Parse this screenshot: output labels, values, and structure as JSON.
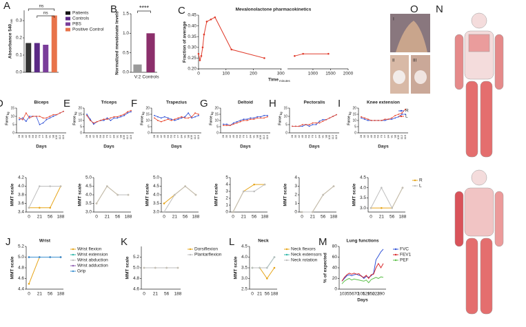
{
  "chart_data": [
    {
      "type": "bar",
      "panel": "A",
      "ylabel": "Absorbance 540",
      "ylabel_sub": "nm",
      "categories": [
        "Patients",
        "Controls",
        "PBS",
        "Positive Control"
      ],
      "values": [
        0.17,
        0.17,
        0.16,
        0.33
      ],
      "colors": [
        "#111111",
        "#5b2a86",
        "#7a3d9a",
        "#e8734a"
      ],
      "ylim": [
        0,
        0.36
      ],
      "yticks": [
        {
          "value": 0,
          "label": "0.0"
        },
        0.1,
        0.2,
        0.3
      ],
      "legend": "right",
      "annotations": [
        "ns",
        "ns"
      ]
    },
    {
      "type": "bar",
      "panel": "B",
      "ylabel": "Normalized mevalonate levels",
      "categories": [
        "V:2",
        "Controls"
      ],
      "values": [
        0.2,
        1.0
      ],
      "colors": [
        "#9a9a9a",
        "#8b2f6b"
      ],
      "ylim": [
        0,
        1.5
      ],
      "yticks": [
        {
          "value": 0,
          "label": "0.0"
        },
        0.5,
        {
          "value": 1,
          "label": "1.0"
        },
        1.5
      ],
      "annotations": [
        "****"
      ]
    },
    {
      "type": "line",
      "panel": "C",
      "title": "Mevalonolactone pharmacokinetics",
      "xlabel": "Time",
      "xlabel_sub": "minutes",
      "ylabel": "Fraction of average",
      "x": [
        0,
        5,
        10,
        15,
        20,
        30,
        45,
        60,
        120,
        240,
        480,
        720,
        1440
      ],
      "series": [
        {
          "name": "Mevalonolactone",
          "color": "#e03a2a",
          "values": [
            0.27,
            0.24,
            0.26,
            0.3,
            0.36,
            0.42,
            0.43,
            0.44,
            0.29,
            0.25,
            0.26,
            0.27,
            0.27
          ]
        }
      ],
      "xlim": [
        0,
        2000
      ],
      "xbreak": 300,
      "xticks": [
        0,
        100,
        200,
        300,
        1000,
        1500,
        2000
      ],
      "ylim": [
        0.2,
        0.45
      ],
      "yticks": [
        {
          "value": 0.2,
          "label": "0.20"
        },
        0.25,
        {
          "value": 0.3,
          "label": "0.30"
        },
        0.35,
        {
          "value": 0.4,
          "label": "0.40"
        },
        0.45
      ],
      "legend": "none"
    },
    {
      "type": "line",
      "panel": "D",
      "title": "Biceps",
      "xlabel": "Days",
      "ylabel": "Force",
      "ylabel_sub": "kg",
      "categories": [
        "28",
        "35",
        "42",
        "49",
        "56",
        "63",
        "70",
        "77",
        "84",
        "91",
        "98",
        "105",
        "112",
        "119"
      ],
      "series": [
        {
          "name": "R",
          "color": "#2d4fd6",
          "values": [
            8,
            9,
            7,
            10,
            10,
            10,
            5,
            6,
            8,
            9,
            10,
            11,
            12,
            13
          ]
        },
        {
          "name": "L",
          "color": "#e8442a",
          "values": [
            9,
            8,
            12,
            9,
            10,
            10,
            10,
            9,
            9,
            10,
            11,
            11,
            12,
            13
          ]
        }
      ],
      "ylim": [
        0,
        15
      ],
      "yticks": [
        0,
        5,
        10,
        15
      ],
      "legend": "none"
    },
    {
      "type": "line",
      "panel": "E",
      "title": "Triceps",
      "xlabel": "Days",
      "ylabel": "Force",
      "ylabel_sub": "kg",
      "categories": [
        "28",
        "35",
        "42",
        "49",
        "56",
        "63",
        "70",
        "77",
        "84",
        "91",
        "98",
        "105",
        "112",
        "119"
      ],
      "series": [
        {
          "name": "R",
          "color": "#2d4fd6",
          "values": [
            15,
            11,
            7,
            9,
            10,
            10,
            12,
            10,
            12,
            12,
            13,
            14,
            16,
            17
          ]
        },
        {
          "name": "L",
          "color": "#e8442a",
          "values": [
            14,
            10,
            8,
            9,
            10,
            11,
            11,
            12,
            13,
            13,
            14,
            15,
            17,
            18
          ]
        }
      ],
      "ylim": [
        0,
        20
      ],
      "yticks": [
        0,
        5,
        10,
        15,
        20
      ],
      "legend": "none"
    },
    {
      "type": "line",
      "panel": "F",
      "title": "Trapezius",
      "xlabel": "Days",
      "ylabel": "Force",
      "ylabel_sub": "kg",
      "categories": [
        "28",
        "35",
        "42",
        "49",
        "56",
        "63",
        "70",
        "77",
        "84",
        "91",
        "98",
        "105",
        "112",
        "119"
      ],
      "series": [
        {
          "name": "R",
          "color": "#2d4fd6",
          "values": [
            14,
            13,
            12,
            13,
            12,
            11,
            10,
            11,
            12,
            13,
            16,
            12,
            13,
            14
          ]
        },
        {
          "name": "L",
          "color": "#e8442a",
          "values": [
            12,
            10,
            9,
            10,
            11,
            10,
            11,
            12,
            13,
            12,
            12,
            13,
            16,
            15
          ]
        }
      ],
      "ylim": [
        0,
        20
      ],
      "yticks": [
        0,
        5,
        10,
        15,
        20
      ],
      "legend": "none"
    },
    {
      "type": "line",
      "panel": "G",
      "title": "Deltoid",
      "xlabel": "Days",
      "ylabel": "Force",
      "ylabel_sub": "kg",
      "categories": [
        "28",
        "35",
        "42",
        "49",
        "56",
        "63",
        "70",
        "77",
        "84",
        "91",
        "98",
        "105",
        "112",
        "119"
      ],
      "series": [
        {
          "name": "R",
          "color": "#2d4fd6",
          "values": [
            7,
            7,
            6,
            8,
            9,
            10,
            11,
            11,
            12,
            12,
            13,
            13,
            14,
            14
          ]
        },
        {
          "name": "L",
          "color": "#e8442a",
          "values": [
            6,
            6,
            6,
            7,
            8,
            9,
            10,
            10,
            11,
            11,
            12,
            12,
            12,
            13
          ]
        }
      ],
      "ylim": [
        0,
        20
      ],
      "yticks": [
        0,
        5,
        10,
        15,
        20
      ],
      "legend": "none"
    },
    {
      "type": "line",
      "panel": "H",
      "title": "Pectoralis",
      "xlabel": "Days",
      "ylabel": "Force",
      "ylabel_sub": "kg",
      "categories": [
        "28",
        "35",
        "42",
        "49",
        "56",
        "63",
        "70",
        "77",
        "84",
        "91",
        "98",
        "105",
        "112",
        "119"
      ],
      "series": [
        {
          "name": "R",
          "color": "#2d4fd6",
          "values": [
            4,
            4,
            4,
            4,
            5,
            4,
            5,
            5,
            7,
            8,
            8,
            9,
            10,
            11
          ]
        },
        {
          "name": "L",
          "color": "#e8442a",
          "values": [
            4,
            4,
            4,
            5,
            5,
            5,
            6,
            6,
            6,
            7,
            8,
            9,
            10,
            11
          ]
        }
      ],
      "ylim": [
        0,
        15
      ],
      "yticks": [
        0,
        5,
        10,
        15
      ],
      "legend": "none"
    },
    {
      "type": "line",
      "panel": "I",
      "title": "Knee extension",
      "xlabel": "Days",
      "ylabel": "Force",
      "ylabel_sub": "kg",
      "categories": [
        "28",
        "35",
        "42",
        "49",
        "56",
        "63",
        "70",
        "77",
        "84",
        "91",
        "98",
        "105",
        "112",
        "119"
      ],
      "series": [
        {
          "name": "R",
          "color": "#2d4fd6",
          "values": [
            12,
            11,
            10,
            10,
            10,
            10,
            10,
            10,
            11,
            11,
            12,
            13,
            15,
            15
          ]
        },
        {
          "name": "L",
          "color": "#e8442a",
          "values": [
            13,
            12,
            11,
            10,
            10,
            10,
            10,
            11,
            11,
            12,
            14,
            15,
            16,
            19
          ]
        }
      ],
      "ylim": [
        0,
        20
      ],
      "yticks": [
        0,
        5,
        10,
        15,
        20
      ],
      "legend": "upper-right"
    },
    {
      "type": "line",
      "ylabel": "MMT scale",
      "categories": [
        "0",
        "21",
        "56",
        "188"
      ],
      "series": [
        {
          "name": "R",
          "color": "#e6a417",
          "values": [
            3.5,
            3.5,
            3.5,
            4.0
          ]
        },
        {
          "name": "L",
          "color": "#bdbdbd",
          "values": [
            3.5,
            4.0,
            4.0,
            4.0
          ]
        }
      ],
      "ylim": [
        3.4,
        4.2
      ],
      "yticks": [
        3.4,
        3.6,
        3.8,
        {
          "value": 4,
          "label": "4.0"
        },
        4.2
      ],
      "legend": "none"
    },
    {
      "type": "line",
      "ylabel": "MMT scale",
      "categories": [
        "0",
        "21",
        "56",
        "188"
      ],
      "series": [
        {
          "name": "R",
          "color": "#e6a417",
          "values": [
            3.5,
            4.5,
            4.0,
            4.0
          ]
        },
        {
          "name": "L",
          "color": "#bdbdbd",
          "values": [
            3.5,
            4.5,
            4.0,
            4.0
          ]
        }
      ],
      "ylim": [
        3.0,
        5.0
      ],
      "yticks": [
        {
          "value": 3,
          "label": "3.0"
        },
        3.5,
        {
          "value": 4,
          "label": "4.0"
        },
        4.5,
        {
          "value": 5,
          "label": "5.0"
        }
      ],
      "legend": "none"
    },
    {
      "type": "line",
      "ylabel": "MMT scale",
      "categories": [
        "0",
        "21",
        "56",
        "188"
      ],
      "series": [
        {
          "name": "R",
          "color": "#e6a417",
          "values": [
            3.5,
            4.0,
            4.5,
            4.0
          ]
        },
        {
          "name": "L",
          "color": "#bdbdbd",
          "values": [
            3.0,
            4.0,
            4.5,
            4.0
          ]
        }
      ],
      "ylim": [
        3.0,
        5.0
      ],
      "yticks": [
        {
          "value": 3,
          "label": "3.0"
        },
        3.5,
        {
          "value": 4,
          "label": "4.0"
        },
        4.5,
        {
          "value": 5,
          "label": "5.0"
        }
      ],
      "legend": "none"
    },
    {
      "type": "line",
      "ylabel": "MMT scale",
      "categories": [
        "0",
        "21",
        "56",
        "188"
      ],
      "series": [
        {
          "name": "R",
          "color": "#e6a417",
          "values": [
            0,
            3,
            4,
            4
          ]
        },
        {
          "name": "L",
          "color": "#bdbdbd",
          "values": [
            0,
            3,
            3,
            4
          ]
        }
      ],
      "ylim": [
        0,
        5
      ],
      "yticks": [
        0,
        1,
        2,
        3,
        4,
        5
      ],
      "legend": "none"
    },
    {
      "type": "line",
      "ylabel": "MMT scale",
      "categories": [
        "0",
        "21",
        "56",
        "188"
      ],
      "series": [
        {
          "name": "R",
          "color": "#e6a417",
          "values": [
            0,
            0,
            2,
            3
          ]
        },
        {
          "name": "L",
          "color": "#bdbdbd",
          "values": [
            0,
            0,
            2,
            3
          ]
        }
      ],
      "ylim": [
        0,
        4
      ],
      "yticks": [
        0,
        1,
        2,
        3,
        4
      ],
      "legend": "none"
    },
    {
      "type": "line",
      "ylabel": "MMT scale",
      "categories": [
        "0",
        "21",
        "56",
        "188"
      ],
      "series": [
        {
          "name": "R",
          "color": "#e6a417",
          "values": [
            3,
            3,
            3,
            4
          ]
        },
        {
          "name": "L",
          "color": "#bdbdbd",
          "values": [
            3,
            4,
            3,
            4
          ]
        }
      ],
      "ylim": [
        2.8,
        4.5
      ],
      "yticks": [
        {
          "value": 3,
          "label": "3.0"
        },
        3.5,
        {
          "value": 4,
          "label": "4.0"
        },
        4.5
      ],
      "legend": "right"
    },
    {
      "type": "line",
      "panel": "J",
      "title": "Wrist",
      "ylabel": "MMT scale",
      "categories": [
        "0",
        "21",
        "56",
        "188"
      ],
      "series": [
        {
          "name": "Wrist flexion",
          "color": "#e6a417",
          "values": [
            4.5,
            5,
            5,
            5
          ]
        },
        {
          "name": "Wrist extension",
          "color": "#2bb5a8",
          "values": [
            5,
            5,
            5,
            5
          ]
        },
        {
          "name": "Wrist abduction",
          "color": "#bdbdbd",
          "values": [
            5,
            5,
            5,
            5
          ]
        },
        {
          "name": "Wrist adduction",
          "color": "#8e5bb0",
          "values": [
            5,
            5,
            5,
            5
          ]
        },
        {
          "name": "Grip",
          "color": "#3a8fd0",
          "values": [
            5,
            5,
            5,
            5
          ]
        }
      ],
      "ylim": [
        4.4,
        5.2
      ],
      "yticks": [
        4.4,
        4.6,
        4.8,
        {
          "value": 5,
          "label": "5.0"
        },
        5.2
      ],
      "legend": "right"
    },
    {
      "type": "line",
      "panel": "K",
      "ylabel": "MMT scale",
      "categories": [
        "0",
        "21",
        "56",
        "188"
      ],
      "series": [
        {
          "name": "Dorsiflexion",
          "color": "#e6a417",
          "values": [
            5,
            5,
            5,
            5
          ]
        },
        {
          "name": "Plantarflexion",
          "color": "#bdbdbd",
          "values": [
            5,
            5,
            5,
            5
          ]
        }
      ],
      "ylim": [
        4.6,
        5.4
      ],
      "yticks": [
        4.6,
        4.8,
        {
          "value": 5,
          "label": "5.0"
        },
        5.2
      ],
      "legend": "right"
    },
    {
      "type": "line",
      "panel": "L",
      "title": "Neck",
      "ylabel": "MMT scale",
      "categories": [
        "0",
        "21",
        "56",
        "188"
      ],
      "series": [
        {
          "name": "Neck flexors",
          "color": "#e6a417",
          "values": [
            3.5,
            3.5,
            3.0,
            3.5
          ]
        },
        {
          "name": "Neck extensors",
          "color": "#2bb5a8",
          "values": [
            3.5,
            3.5,
            3.5,
            4.0
          ]
        },
        {
          "name": "Neck rotation",
          "color": "#bdbdbd",
          "values": [
            3.5,
            3.5,
            3.5,
            4.0
          ]
        }
      ],
      "ylim": [
        2.5,
        4.5
      ],
      "yticks": [
        {
          "value": 2.5,
          "label": "2.5"
        },
        {
          "value": 3,
          "label": "3.0"
        },
        3.5,
        {
          "value": 4,
          "label": "4.0"
        },
        4.5
      ],
      "legend": "right"
    },
    {
      "type": "line",
      "panel": "M",
      "title": "Lung functions",
      "xlabel": "Days",
      "ylabel": "% of expected",
      "categories": [
        "10",
        null,
        "35",
        null,
        "56",
        null,
        "70",
        null,
        "105",
        null,
        "129",
        null,
        "150",
        null,
        "223",
        null,
        "290",
        null
      ],
      "series": [
        {
          "name": "FVC",
          "color": "#2d4fd6",
          "values": [
            15,
            20,
            25,
            27,
            25,
            27,
            28,
            26,
            25,
            20,
            24,
            22,
            25,
            30,
            55,
            62,
            70,
            75
          ]
        },
        {
          "name": "FEV1",
          "color": "#d8262a",
          "values": [
            15,
            22,
            27,
            30,
            28,
            30,
            28,
            29,
            24,
            22,
            26,
            20,
            27,
            28,
            40,
            48,
            40,
            48
          ]
        },
        {
          "name": "PEF",
          "color": "#5cc04a",
          "values": [
            10,
            15,
            18,
            20,
            17,
            19,
            18,
            17,
            16,
            15,
            17,
            12,
            18,
            20,
            22,
            20,
            23,
            22
          ]
        }
      ],
      "ylim": [
        0,
        80
      ],
      "yticks": [
        0,
        20,
        40,
        60,
        80
      ],
      "legend": "right",
      "markers": false
    }
  ],
  "figure": {
    "photo_panel": "O",
    "photo_labels": [
      "I",
      "II",
      "III"
    ],
    "body_panel": "N"
  }
}
